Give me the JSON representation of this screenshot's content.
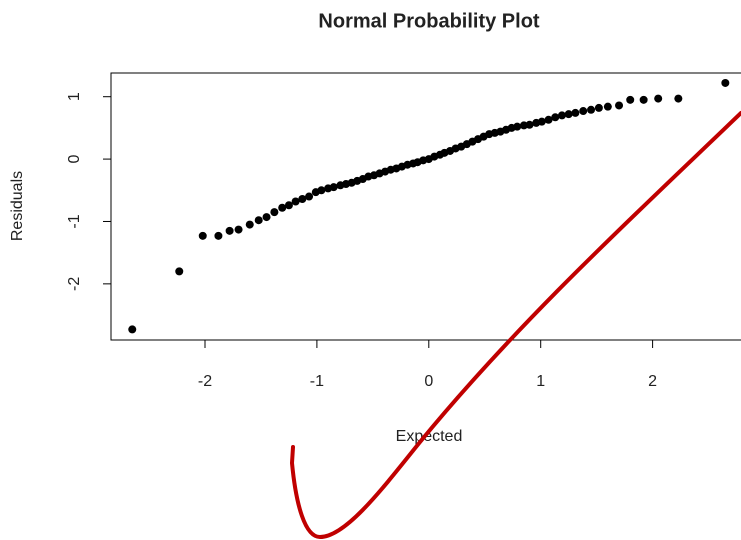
{
  "chart_data": {
    "type": "scatter",
    "title": "Normal Probability Plot",
    "x_label": "Expected",
    "y_label": "Residuals",
    "x": [
      -2.65,
      -2.23,
      -2.02,
      -1.88,
      -1.78,
      -1.7,
      -1.6,
      -1.52,
      -1.45,
      -1.38,
      -1.31,
      -1.25,
      -1.19,
      -1.13,
      -1.07,
      -1.01,
      -0.96,
      -0.9,
      -0.85,
      -0.79,
      -0.74,
      -0.69,
      -0.64,
      -0.59,
      -0.54,
      -0.49,
      -0.44,
      -0.39,
      -0.34,
      -0.29,
      -0.24,
      -0.19,
      -0.14,
      -0.1,
      -0.05,
      0.0,
      0.05,
      0.1,
      0.14,
      0.19,
      0.24,
      0.29,
      0.34,
      0.39,
      0.44,
      0.49,
      0.54,
      0.59,
      0.64,
      0.69,
      0.74,
      0.79,
      0.85,
      0.9,
      0.96,
      1.01,
      1.07,
      1.13,
      1.19,
      1.25,
      1.31,
      1.38,
      1.45,
      1.52,
      1.6,
      1.7,
      1.8,
      1.92,
      2.05,
      2.23,
      2.65
    ],
    "values": [
      -2.73,
      -1.8,
      -1.23,
      -1.23,
      -1.15,
      -1.13,
      -1.05,
      -0.98,
      -0.93,
      -0.85,
      -0.78,
      -0.74,
      -0.68,
      -0.64,
      -0.6,
      -0.53,
      -0.5,
      -0.47,
      -0.45,
      -0.42,
      -0.4,
      -0.38,
      -0.35,
      -0.32,
      -0.28,
      -0.26,
      -0.23,
      -0.2,
      -0.17,
      -0.15,
      -0.12,
      -0.09,
      -0.07,
      -0.05,
      -0.02,
      0.0,
      0.04,
      0.07,
      0.1,
      0.13,
      0.17,
      0.2,
      0.24,
      0.28,
      0.32,
      0.36,
      0.4,
      0.42,
      0.44,
      0.47,
      0.5,
      0.52,
      0.54,
      0.55,
      0.58,
      0.6,
      0.63,
      0.67,
      0.7,
      0.72,
      0.74,
      0.77,
      0.79,
      0.82,
      0.84,
      0.86,
      0.95,
      0.95,
      0.97,
      0.97,
      1.22
    ],
    "color": "#000000",
    "xlim": [
      -2.84,
      2.79
    ],
    "ylim": [
      -2.9,
      1.38
    ],
    "xticks": [
      -2,
      -1,
      0,
      1,
      2
    ],
    "yticks": [
      -2,
      -1,
      0,
      1
    ]
  }
}
